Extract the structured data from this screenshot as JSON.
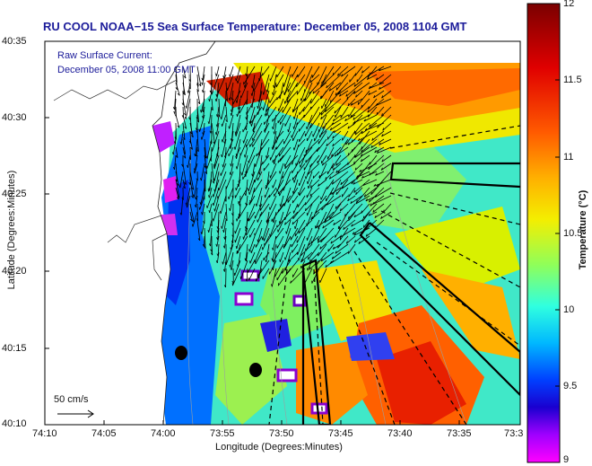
{
  "title": "RU COOL  NOAA−15  Sea Surface Temperature:  December 05, 2008 1104 GMT",
  "annotation": {
    "line1": "Raw Surface Current:",
    "line2": "December 05, 2008 11:00 GMT"
  },
  "scale_label": "50 cm/s",
  "axes": {
    "xlabel": "Longitude (Degrees:Minutes)",
    "ylabel": "Latitude (Degrees:Minutes)",
    "xticks": [
      "74:10",
      "74:05",
      "74:00",
      "73:55",
      "73:50",
      "73:45",
      "73:40",
      "73:35",
      "73:3"
    ],
    "yticks": [
      "40:35",
      "40:30",
      "40:25",
      "40:20",
      "40:15",
      "40:10"
    ]
  },
  "colorbar": {
    "label": "Temperature (°C)",
    "ticks": [
      "12",
      "11.5",
      "11",
      "10.5",
      "10",
      "9.5",
      "9"
    ],
    "colors": {
      "top": "#8b0000",
      "high": "#ff3300",
      "mid_high": "#ffd400",
      "mid": "#80ff7a",
      "mid_low": "#00bfff",
      "low": "#0000ff",
      "bottom": "#ff00ff"
    }
  },
  "map_data": {
    "lon_range": [
      "74:10",
      "73:33"
    ],
    "lat_range": [
      "40:10",
      "40:35"
    ],
    "temperature_range_c": [
      9,
      12
    ],
    "markers": 2
  }
}
